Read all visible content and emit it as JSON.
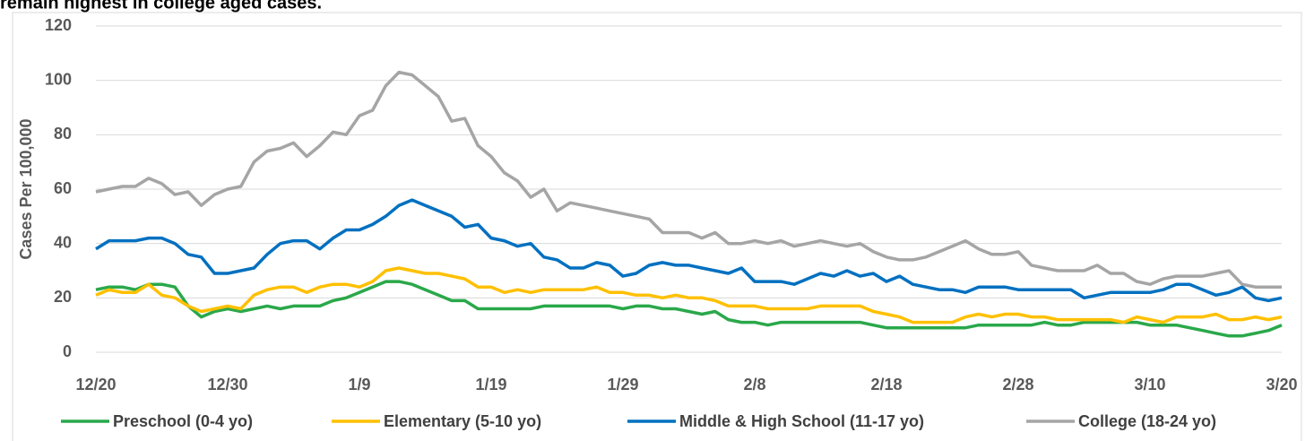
{
  "chart_data": {
    "type": "line",
    "title": "remain highest in college aged cases.",
    "y_label": "Cases Per 100,000",
    "categories": [
      "12/20",
      null,
      null,
      null,
      null,
      null,
      null,
      null,
      null,
      null,
      "12/30",
      null,
      null,
      null,
      null,
      null,
      null,
      null,
      null,
      null,
      "1/9",
      null,
      null,
      null,
      null,
      null,
      null,
      null,
      null,
      null,
      "1/19",
      null,
      null,
      null,
      null,
      null,
      null,
      null,
      null,
      null,
      "1/29",
      null,
      null,
      null,
      null,
      null,
      null,
      null,
      null,
      null,
      "2/8",
      null,
      null,
      null,
      null,
      null,
      null,
      null,
      null,
      null,
      "2/18",
      null,
      null,
      null,
      null,
      null,
      null,
      null,
      null,
      null,
      "2/28",
      null,
      null,
      null,
      null,
      null,
      null,
      null,
      null,
      null,
      "3/10",
      null,
      null,
      null,
      null,
      null,
      null,
      null,
      null,
      null,
      "3/20"
    ],
    "series": [
      {
        "name": "Preschool (0-4 yo)",
        "color": "#2aa84a",
        "values": [
          23,
          24,
          24,
          23,
          25,
          25,
          24,
          17,
          13,
          15,
          16,
          15,
          16,
          17,
          16,
          17,
          17,
          17,
          19,
          20,
          22,
          24,
          26,
          26,
          25,
          23,
          21,
          19,
          19,
          16,
          16,
          16,
          16,
          16,
          17,
          17,
          17,
          17,
          17,
          17,
          16,
          17,
          17,
          16,
          16,
          15,
          14,
          15,
          12,
          11,
          11,
          10,
          11,
          11,
          11,
          11,
          11,
          11,
          11,
          10,
          9,
          9,
          9,
          9,
          9,
          9,
          9,
          10,
          10,
          10,
          10,
          10,
          11,
          10,
          10,
          11,
          11,
          11,
          11,
          11,
          10,
          10,
          10,
          9,
          8,
          7,
          6,
          6,
          7,
          8,
          10
        ]
      },
      {
        "name": "Elementary (5-10 yo)",
        "color": "#ffc000",
        "values": [
          21,
          23,
          22,
          22,
          25,
          21,
          20,
          17,
          15,
          16,
          17,
          16,
          21,
          23,
          24,
          24,
          22,
          24,
          25,
          25,
          24,
          26,
          30,
          31,
          30,
          29,
          29,
          28,
          27,
          24,
          24,
          22,
          23,
          22,
          23,
          23,
          23,
          23,
          24,
          22,
          22,
          21,
          21,
          20,
          21,
          20,
          20,
          19,
          17,
          17,
          17,
          16,
          16,
          16,
          16,
          17,
          17,
          17,
          17,
          15,
          14,
          13,
          11,
          11,
          11,
          11,
          13,
          14,
          13,
          14,
          14,
          13,
          13,
          12,
          12,
          12,
          12,
          12,
          11,
          13,
          12,
          11,
          13,
          13,
          13,
          14,
          12,
          12,
          13,
          12,
          13
        ]
      },
      {
        "name": "Middle & High School (11-17 yo)",
        "color": "#0070c0",
        "values": [
          38,
          41,
          41,
          41,
          42,
          42,
          40,
          36,
          35,
          29,
          29,
          30,
          31,
          36,
          40,
          41,
          41,
          38,
          42,
          45,
          45,
          47,
          50,
          54,
          56,
          54,
          52,
          50,
          46,
          47,
          42,
          41,
          39,
          40,
          35,
          34,
          31,
          31,
          33,
          32,
          28,
          29,
          32,
          33,
          32,
          32,
          31,
          30,
          29,
          31,
          26,
          26,
          26,
          25,
          27,
          29,
          28,
          30,
          28,
          29,
          26,
          28,
          25,
          24,
          23,
          23,
          22,
          24,
          24,
          24,
          23,
          23,
          23,
          23,
          23,
          20,
          21,
          22,
          22,
          22,
          22,
          23,
          25,
          25,
          23,
          21,
          22,
          24,
          20,
          19,
          20
        ]
      },
      {
        "name": "College (18-24 yo)",
        "color": "#a5a5a5",
        "values": [
          59,
          60,
          61,
          61,
          64,
          62,
          58,
          59,
          54,
          58,
          60,
          61,
          70,
          74,
          75,
          77,
          72,
          76,
          81,
          80,
          87,
          89,
          98,
          103,
          102,
          98,
          94,
          85,
          86,
          76,
          72,
          66,
          63,
          57,
          60,
          52,
          55,
          54,
          53,
          52,
          51,
          50,
          49,
          44,
          44,
          44,
          42,
          44,
          40,
          40,
          41,
          40,
          41,
          39,
          40,
          41,
          40,
          39,
          40,
          37,
          35,
          34,
          34,
          35,
          37,
          39,
          41,
          38,
          36,
          36,
          37,
          32,
          31,
          30,
          30,
          30,
          32,
          29,
          29,
          26,
          25,
          27,
          28,
          28,
          28,
          29,
          30,
          25,
          24,
          24,
          24
        ]
      }
    ],
    "ylim": [
      0,
      120
    ],
    "yticks": [
      0,
      20,
      40,
      60,
      80,
      100,
      120
    ],
    "grid": true,
    "legend": "bottom"
  }
}
